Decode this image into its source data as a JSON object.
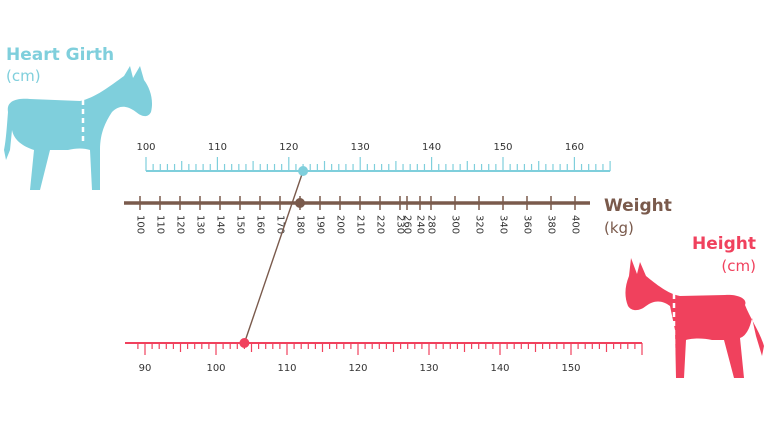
{
  "colors": {
    "girth": "#7fcfdc",
    "weight": "#7a5a4c",
    "height": "#f0415d"
  },
  "heart_girth": {
    "title": "Heart Girth",
    "unit": "(cm)",
    "icon": "donkey-girth-icon",
    "min": 100,
    "max": 165,
    "labels": [
      100,
      110,
      120,
      130,
      140,
      150,
      160
    ],
    "marker": 122
  },
  "weight": {
    "title": "Weight",
    "unit": "(kg)",
    "labels": [
      100,
      110,
      120,
      130,
      140,
      150,
      160,
      170,
      180,
      190,
      200,
      210,
      220,
      230,
      240,
      260,
      280,
      300,
      320,
      340,
      360,
      380,
      400
    ],
    "marker": 180
  },
  "height": {
    "title": "Height",
    "unit": "(cm)",
    "icon": "donkey-height-icon",
    "min": 89,
    "max": 160,
    "labels": [
      90,
      100,
      110,
      120,
      130,
      140,
      150
    ],
    "marker": 104
  }
}
